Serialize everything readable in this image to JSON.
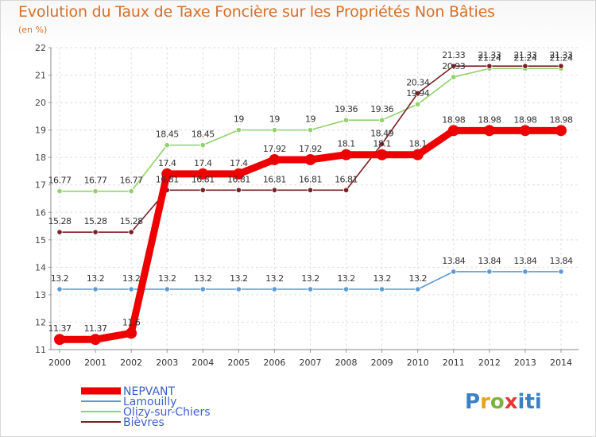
{
  "title": "Evolution du Taux de Taxe Foncière sur les Propriétés Non Bâties",
  "unit_label": "(en %)",
  "logo_text": "Proxiti",
  "chart_data": {
    "type": "line",
    "title": "Evolution du Taux de Taxe Foncière sur les Propriétés Non Bâties",
    "ylabel": "(en %)",
    "xlabel": "",
    "ylim": [
      11,
      22
    ],
    "y_ticks": [
      "11",
      "12",
      "13",
      "14",
      "15",
      "16",
      "17",
      "18",
      "19",
      "20",
      "21",
      "22"
    ],
    "categories": [
      "2000",
      "2001",
      "2002",
      "2003",
      "2004",
      "2005",
      "2006",
      "2007",
      "2008",
      "2009",
      "2010",
      "2011",
      "2012",
      "2013",
      "2014"
    ],
    "grid": true,
    "legend_position": "bottom-left",
    "series": [
      {
        "name": "NEPVANT",
        "color": "#ee0000",
        "values": [
          11.37,
          11.37,
          11.6,
          17.4,
          17.4,
          17.4,
          17.92,
          17.92,
          18.1,
          18.1,
          18.1,
          18.98,
          18.98,
          18.98,
          18.98
        ],
        "labels": [
          "11.37",
          "11.37",
          "11.6",
          "17.4",
          "17.4",
          "17.4",
          "17.92",
          "17.92",
          "18.1",
          "18.1",
          "18.1",
          "18.98",
          "18.98",
          "18.98",
          "18.98"
        ]
      },
      {
        "name": "Lamouilly",
        "color": "#5b9bd5",
        "values": [
          13.2,
          13.2,
          13.2,
          13.2,
          13.2,
          13.2,
          13.2,
          13.2,
          13.2,
          13.2,
          13.2,
          13.84,
          13.84,
          13.84,
          13.84
        ],
        "labels": [
          "13.2",
          "13.2",
          "13.2",
          "13.2",
          "13.2",
          "13.2",
          "13.2",
          "13.2",
          "13.2",
          "13.2",
          "13.2",
          "13.84",
          "13.84",
          "13.84",
          "13.84"
        ]
      },
      {
        "name": "Olizy-sur-Chiers",
        "color": "#8fd16a",
        "values": [
          16.77,
          16.77,
          16.77,
          18.45,
          18.45,
          19,
          19,
          19,
          19.36,
          19.36,
          19.94,
          20.93,
          21.24,
          21.24,
          21.24
        ],
        "labels": [
          "16.77",
          "16.77",
          "16.77",
          "18.45",
          "18.45",
          "19",
          "19",
          "19",
          "19.36",
          "19.36",
          "19.94",
          "20.93",
          "21.24",
          "21.24",
          "21.24"
        ]
      },
      {
        "name": "Bièvres",
        "color": "#7a1f24",
        "values": [
          15.28,
          15.28,
          15.28,
          16.81,
          16.81,
          16.81,
          16.81,
          16.81,
          16.81,
          18.49,
          20.34,
          21.33,
          21.33,
          21.33,
          21.33
        ],
        "labels": [
          "15.28",
          "15.28",
          "15.28",
          "16.81",
          "16.81",
          "16.81",
          "16.81",
          "16.81",
          "16.81",
          "18.49",
          "20.34",
          "21.33",
          "21.33",
          "21.33",
          "21.33"
        ]
      }
    ]
  }
}
